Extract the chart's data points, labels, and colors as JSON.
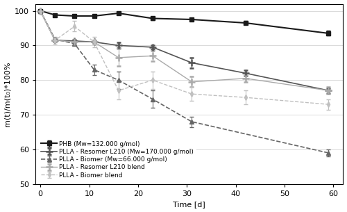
{
  "xlabel": "Time [d]",
  "ylabel": "m(t)/m(t₀)*100%",
  "xlim": [
    -1,
    62
  ],
  "ylim": [
    50,
    102
  ],
  "yticks": [
    50,
    60,
    70,
    80,
    90,
    100
  ],
  "xticks": [
    0,
    10,
    20,
    30,
    40,
    50,
    60
  ],
  "series_order": [
    "PHB",
    "PLLA_Resomer",
    "PLLA_Biomer",
    "PLLA_Resomer_blend",
    "PLLA_Biomer_blend"
  ],
  "PHB": {
    "x": [
      0,
      3,
      7,
      11,
      16,
      23,
      31,
      42,
      59
    ],
    "y": [
      100,
      98.8,
      98.5,
      98.5,
      99.3,
      97.8,
      97.5,
      96.5,
      93.5
    ],
    "yerr": [
      0.3,
      0.4,
      0.4,
      0.4,
      0.4,
      0.5,
      0.5,
      0.5,
      0.7
    ],
    "color": "#1a1a1a",
    "linestyle": "-",
    "marker": "s",
    "markersize": 5,
    "linewidth": 1.5,
    "label": "PHB (Mw=132.000 g/mol)"
  },
  "PLLA_Resomer": {
    "x": [
      0,
      3,
      7,
      11,
      16,
      23,
      31,
      42,
      59
    ],
    "y": [
      100,
      91.5,
      91.3,
      91.0,
      90.0,
      89.5,
      85.0,
      82.0,
      77.0
    ],
    "yerr": [
      0.3,
      0.4,
      0.4,
      0.4,
      0.8,
      0.6,
      1.5,
      0.8,
      0.7
    ],
    "color": "#555555",
    "linestyle": "-",
    "marker": "+",
    "markersize": 7,
    "linewidth": 1.2,
    "label": "PLLA - Resomer L210 (Mw=170.000 g/mol)"
  },
  "PLLA_Biomer": {
    "x": [
      0,
      3,
      7,
      11,
      16,
      23,
      31,
      59
    ],
    "y": [
      100,
      91.8,
      90.5,
      83.0,
      80.0,
      74.5,
      68.0,
      59.0
    ],
    "yerr": [
      0.3,
      0.5,
      0.5,
      1.5,
      2.5,
      2.5,
      1.5,
      1.0
    ],
    "color": "#666666",
    "linestyle": "--",
    "marker": "^",
    "markersize": 5,
    "linewidth": 1.2,
    "label": "PLLA - Biomer (Mw=66.000 g/mol)"
  },
  "PLLA_Resomer_blend": {
    "x": [
      0,
      3,
      7,
      11,
      16,
      23,
      31,
      42,
      59
    ],
    "y": [
      100,
      91.5,
      91.0,
      91.0,
      86.5,
      87.0,
      79.5,
      80.5,
      77.0
    ],
    "yerr": [
      0.3,
      0.5,
      0.5,
      0.5,
      2.5,
      1.5,
      1.5,
      1.0,
      1.0
    ],
    "color": "#aaaaaa",
    "linestyle": "-",
    "marker": "+",
    "markersize": 7,
    "linewidth": 1.0,
    "label": "PLLA - Resomer L210 blend"
  },
  "PLLA_Biomer_blend": {
    "x": [
      0,
      3,
      7,
      11,
      16,
      23,
      31,
      42,
      59
    ],
    "y": [
      100,
      91.5,
      95.5,
      91.0,
      77.0,
      80.0,
      76.0,
      75.0,
      73.0
    ],
    "yerr": [
      0.3,
      1.0,
      1.5,
      1.5,
      2.5,
      2.5,
      2.0,
      2.0,
      1.5
    ],
    "color": "#c0c0c0",
    "linestyle": "--",
    "marker": "d",
    "markersize": 4,
    "linewidth": 1.0,
    "label": "PLLA - Biomer blend"
  }
}
